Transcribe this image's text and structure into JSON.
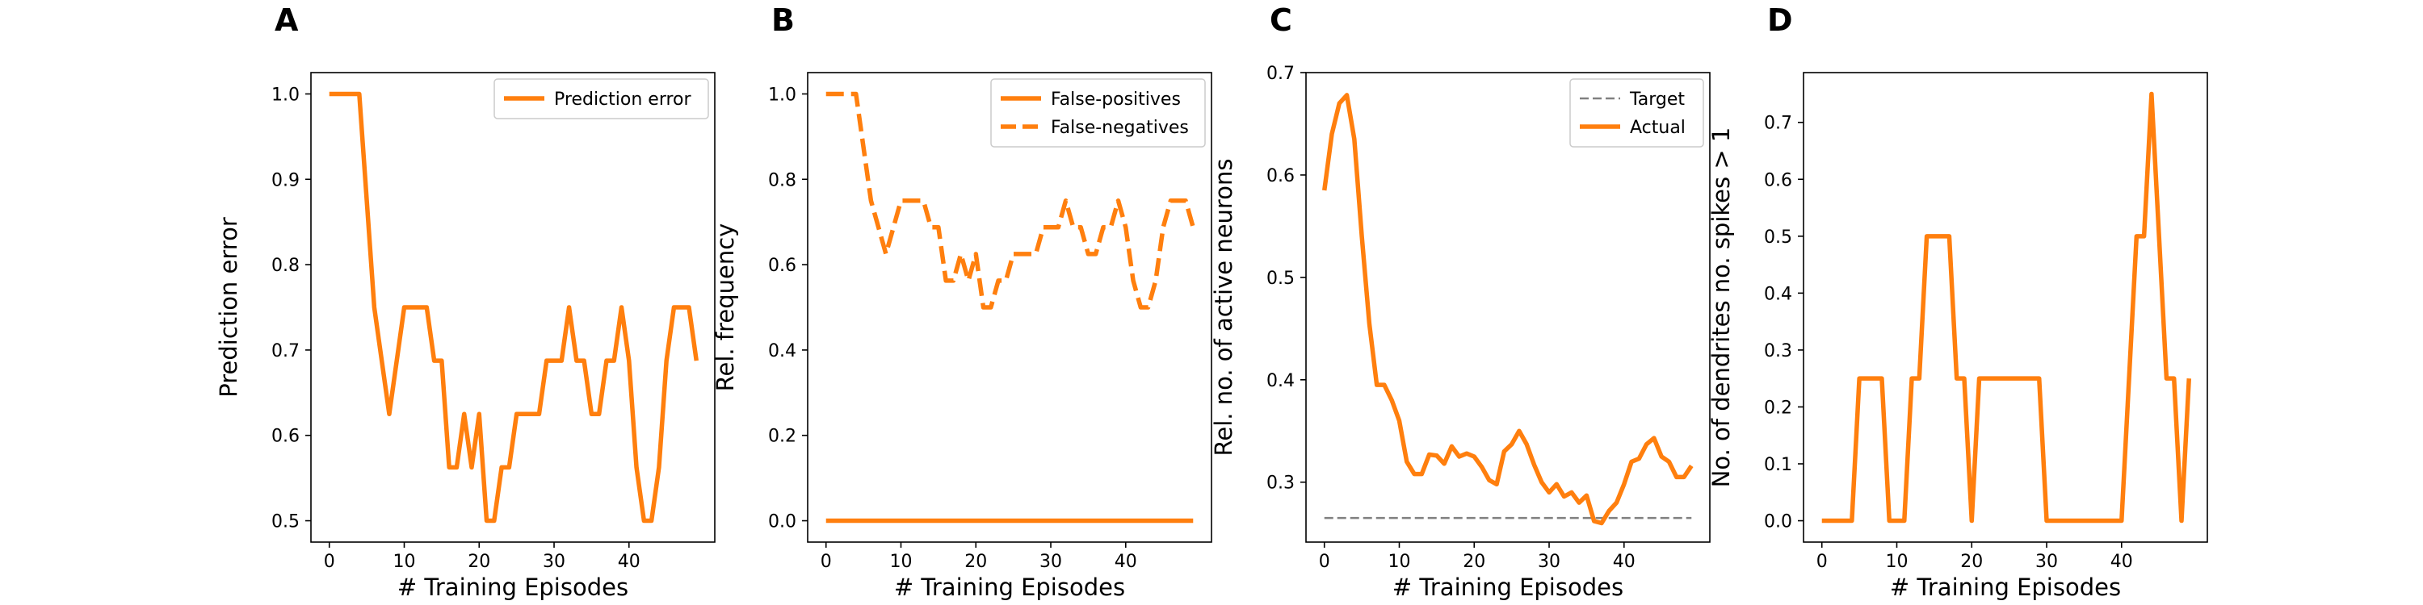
{
  "chart_data": [
    {
      "type": "line",
      "panel_letter": "A",
      "xlabel": "# Training Episodes",
      "ylabel": "Prediction error",
      "xlim": [
        -2.45,
        51.45
      ],
      "ylim": [
        0.475,
        1.025
      ],
      "xticks": [
        0,
        10,
        20,
        30,
        40
      ],
      "yticks": [
        0.5,
        0.6,
        0.7,
        0.8,
        0.9,
        1.0
      ],
      "ytick_labels": [
        "0.5",
        "0.6",
        "0.7",
        "0.8",
        "0.9",
        "1.0"
      ],
      "legend": {
        "position": "upper-right"
      },
      "series": [
        {
          "name": "Prediction error",
          "color": "#ff7f0e",
          "style": "solid",
          "x": [
            0,
            1,
            2,
            3,
            4,
            5,
            6,
            7,
            8,
            9,
            10,
            11,
            12,
            13,
            14,
            15,
            16,
            17,
            18,
            19,
            20,
            21,
            22,
            23,
            24,
            25,
            26,
            27,
            28,
            29,
            30,
            31,
            32,
            33,
            34,
            35,
            36,
            37,
            38,
            39,
            40,
            41,
            42,
            43,
            44,
            45,
            46,
            47,
            48,
            49
          ],
          "y": [
            1.0,
            1.0,
            1.0,
            1.0,
            1.0,
            0.875,
            0.75,
            0.6875,
            0.625,
            0.6875,
            0.75,
            0.75,
            0.75,
            0.75,
            0.6875,
            0.6875,
            0.5625,
            0.5625,
            0.625,
            0.5625,
            0.625,
            0.5,
            0.5,
            0.5625,
            0.5625,
            0.625,
            0.625,
            0.625,
            0.625,
            0.6875,
            0.6875,
            0.6875,
            0.75,
            0.6875,
            0.6875,
            0.625,
            0.625,
            0.6875,
            0.6875,
            0.75,
            0.6875,
            0.5625,
            0.5,
            0.5,
            0.5625,
            0.6875,
            0.75,
            0.75,
            0.75,
            0.6875
          ]
        }
      ]
    },
    {
      "type": "line",
      "panel_letter": "B",
      "xlabel": "# Training Episodes",
      "ylabel": "Rel. frequency",
      "xlim": [
        -2.45,
        51.45
      ],
      "ylim": [
        -0.05,
        1.05
      ],
      "xticks": [
        0,
        10,
        20,
        30,
        40
      ],
      "yticks": [
        0.0,
        0.2,
        0.4,
        0.6,
        0.8,
        1.0
      ],
      "ytick_labels": [
        "0.0",
        "0.2",
        "0.4",
        "0.6",
        "0.8",
        "1.0"
      ],
      "legend": {
        "position": "upper-right"
      },
      "series": [
        {
          "name": "False-positives",
          "color": "#ff7f0e",
          "style": "solid",
          "x": [
            0,
            1,
            2,
            3,
            4,
            5,
            6,
            7,
            8,
            9,
            10,
            11,
            12,
            13,
            14,
            15,
            16,
            17,
            18,
            19,
            20,
            21,
            22,
            23,
            24,
            25,
            26,
            27,
            28,
            29,
            30,
            31,
            32,
            33,
            34,
            35,
            36,
            37,
            38,
            39,
            40,
            41,
            42,
            43,
            44,
            45,
            46,
            47,
            48,
            49
          ],
          "y": [
            0,
            0,
            0,
            0,
            0,
            0,
            0,
            0,
            0,
            0,
            0,
            0,
            0,
            0,
            0,
            0,
            0,
            0,
            0,
            0,
            0,
            0,
            0,
            0,
            0,
            0,
            0,
            0,
            0,
            0,
            0,
            0,
            0,
            0,
            0,
            0,
            0,
            0,
            0,
            0,
            0,
            0,
            0,
            0,
            0,
            0,
            0,
            0,
            0,
            0
          ]
        },
        {
          "name": "False-negatives",
          "color": "#ff7f0e",
          "style": "dashed",
          "x": [
            0,
            1,
            2,
            3,
            4,
            5,
            6,
            7,
            8,
            9,
            10,
            11,
            12,
            13,
            14,
            15,
            16,
            17,
            18,
            19,
            20,
            21,
            22,
            23,
            24,
            25,
            26,
            27,
            28,
            29,
            30,
            31,
            32,
            33,
            34,
            35,
            36,
            37,
            38,
            39,
            40,
            41,
            42,
            43,
            44,
            45,
            46,
            47,
            48,
            49
          ],
          "y": [
            1.0,
            1.0,
            1.0,
            1.0,
            1.0,
            0.875,
            0.75,
            0.6875,
            0.625,
            0.6875,
            0.75,
            0.75,
            0.75,
            0.75,
            0.6875,
            0.6875,
            0.5625,
            0.5625,
            0.625,
            0.5625,
            0.625,
            0.5,
            0.5,
            0.5625,
            0.5625,
            0.625,
            0.625,
            0.625,
            0.625,
            0.6875,
            0.6875,
            0.6875,
            0.75,
            0.6875,
            0.6875,
            0.625,
            0.625,
            0.6875,
            0.6875,
            0.75,
            0.6875,
            0.5625,
            0.5,
            0.5,
            0.5625,
            0.6875,
            0.75,
            0.75,
            0.75,
            0.6875
          ]
        }
      ]
    },
    {
      "type": "line",
      "panel_letter": "C",
      "xlabel": "# Training Episodes",
      "ylabel": "Rel. no. of active neurons",
      "xlim": [
        -2.45,
        51.45
      ],
      "ylim": [
        0.2415,
        0.7
      ],
      "xticks": [
        0,
        10,
        20,
        30,
        40
      ],
      "yticks": [
        0.3,
        0.4,
        0.5,
        0.6,
        0.7
      ],
      "ytick_labels": [
        "0.3",
        "0.4",
        "0.5",
        "0.6",
        "0.7"
      ],
      "legend": {
        "position": "upper-right"
      },
      "series": [
        {
          "name": "Target",
          "color": "#808080",
          "style": "dashed",
          "x": [
            0,
            49
          ],
          "y": [
            0.265,
            0.265
          ]
        },
        {
          "name": "Actual",
          "color": "#ff7f0e",
          "style": "solid",
          "x": [
            0,
            1,
            2,
            3,
            4,
            5,
            6,
            7,
            8,
            9,
            10,
            11,
            12,
            13,
            14,
            15,
            16,
            17,
            18,
            19,
            20,
            21,
            22,
            23,
            24,
            25,
            26,
            27,
            28,
            29,
            30,
            31,
            32,
            33,
            34,
            35,
            36,
            37,
            38,
            39,
            40,
            41,
            42,
            43,
            44,
            45,
            46,
            47,
            48,
            49
          ],
          "y": [
            0.585,
            0.64,
            0.67,
            0.678,
            0.635,
            0.54,
            0.455,
            0.395,
            0.395,
            0.38,
            0.36,
            0.32,
            0.308,
            0.308,
            0.327,
            0.326,
            0.318,
            0.335,
            0.325,
            0.328,
            0.325,
            0.315,
            0.302,
            0.298,
            0.33,
            0.337,
            0.35,
            0.337,
            0.317,
            0.3,
            0.29,
            0.298,
            0.286,
            0.29,
            0.28,
            0.287,
            0.262,
            0.26,
            0.272,
            0.28,
            0.298,
            0.32,
            0.323,
            0.337,
            0.343,
            0.325,
            0.32,
            0.305,
            0.305,
            0.316
          ]
        }
      ]
    },
    {
      "type": "line",
      "panel_letter": "D",
      "xlabel": "# Training Episodes",
      "ylabel": "No. of dendrites no. spikes > 1",
      "xlim": [
        -2.45,
        51.45
      ],
      "ylim": [
        -0.0375,
        0.7875
      ],
      "xticks": [
        0,
        10,
        20,
        30,
        40
      ],
      "yticks": [
        0.0,
        0.1,
        0.2,
        0.3,
        0.4,
        0.5,
        0.6,
        0.7
      ],
      "ytick_labels": [
        "0.0",
        "0.1",
        "0.2",
        "0.3",
        "0.4",
        "0.5",
        "0.6",
        "0.7"
      ],
      "legend": null,
      "series": [
        {
          "color": "#ff7f0e",
          "style": "solid",
          "x": [
            0,
            1,
            2,
            3,
            4,
            5,
            6,
            7,
            8,
            9,
            10,
            11,
            12,
            13,
            14,
            15,
            16,
            17,
            18,
            19,
            20,
            21,
            22,
            23,
            24,
            25,
            26,
            27,
            28,
            29,
            30,
            31,
            32,
            33,
            34,
            35,
            36,
            37,
            38,
            39,
            40,
            41,
            42,
            43,
            44,
            45,
            46,
            47,
            48,
            49
          ],
          "y": [
            0,
            0,
            0,
            0,
            0,
            0.25,
            0.25,
            0.25,
            0.25,
            0,
            0,
            0,
            0.25,
            0.25,
            0.5,
            0.5,
            0.5,
            0.5,
            0.25,
            0.25,
            0,
            0.25,
            0.25,
            0.25,
            0.25,
            0.25,
            0.25,
            0.25,
            0.25,
            0.25,
            0,
            0,
            0,
            0,
            0,
            0,
            0,
            0,
            0,
            0,
            0,
            0.25,
            0.5,
            0.5,
            0.75,
            0.5,
            0.25,
            0.25,
            0,
            0.25
          ]
        }
      ]
    }
  ]
}
